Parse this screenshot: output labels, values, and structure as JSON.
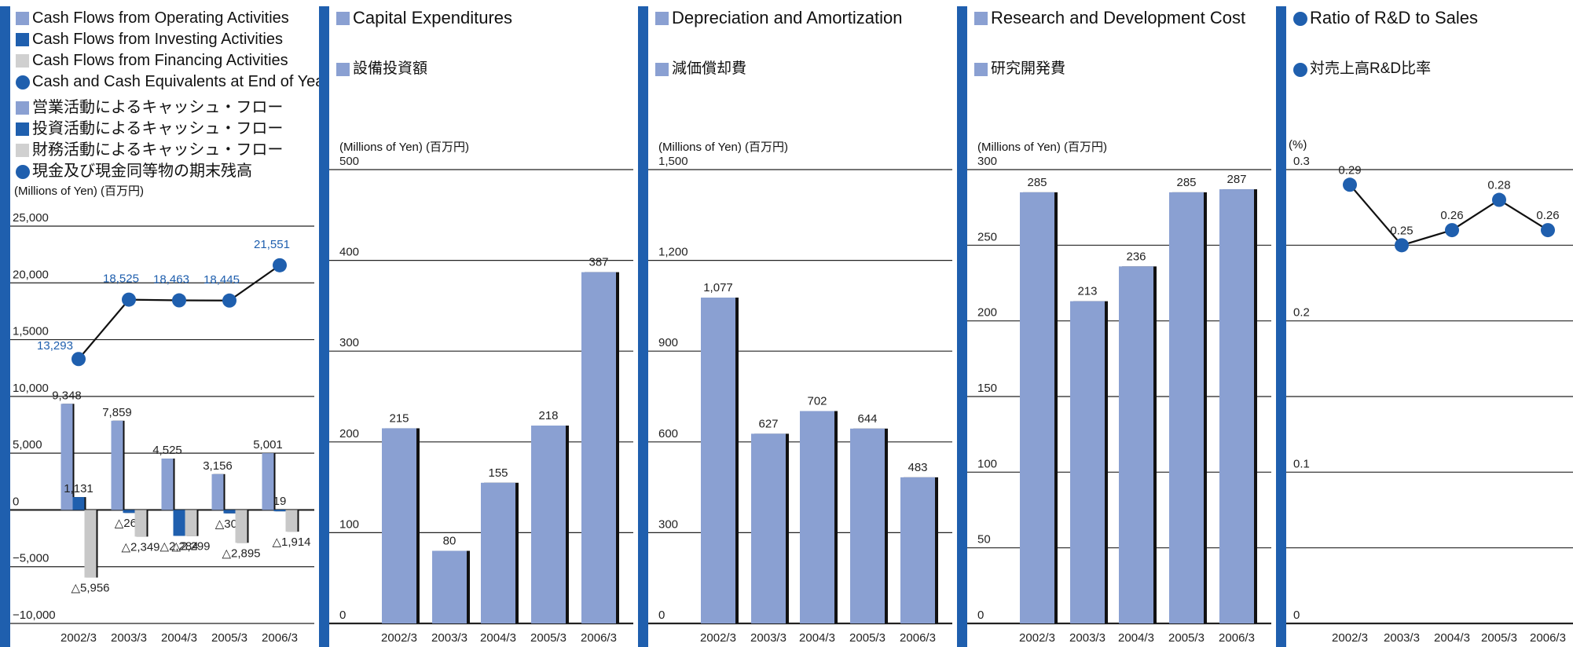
{
  "colors": {
    "accent": "#1f5fae",
    "operating": "#8aa0d2",
    "investing": "#1f5fae",
    "financing": "#c8c8c8",
    "cash": "#1f5fae",
    "bar": "#8aa0d2",
    "bar_shadow": "#111111",
    "point": "#1f5fae"
  },
  "cashflow": {
    "legend_en": [
      {
        "label": "Cash Flows from Operating Activities",
        "color": "#8aa0d2",
        "shape": "square"
      },
      {
        "label": "Cash Flows from Investing Activities",
        "color": "#1f5fae",
        "shape": "square"
      },
      {
        "label": "Cash Flows from Financing Activities",
        "color": "#d0d0d0",
        "shape": "square"
      },
      {
        "label": "Cash and Cash Equivalents at End of Year",
        "color": "#1f5fae",
        "shape": "circle"
      }
    ],
    "legend_ja": [
      {
        "label": "営業活動によるキャッシュ・フロー",
        "color": "#8aa0d2",
        "shape": "square"
      },
      {
        "label": "投資活動によるキャッシュ・フロー",
        "color": "#1f5fae",
        "shape": "square"
      },
      {
        "label": "財務活動によるキャッシュ・フロー",
        "color": "#d0d0d0",
        "shape": "square"
      },
      {
        "label": "現金及び現金同等物の期末残高",
        "color": "#1f5fae",
        "shape": "circle"
      }
    ],
    "unit": "(Millions of Yen) (百万円)"
  },
  "capex": {
    "title_en": "Capital Expenditures",
    "title_ja": "設備投資額",
    "unit": "(Millions of Yen) (百万円)"
  },
  "dep": {
    "title_en": "Depreciation and Amortization",
    "title_ja": "減価償却費",
    "unit": "(Millions of Yen) (百万円)"
  },
  "rnd": {
    "title_en": "Research and Development Cost",
    "title_ja": "研究開発費",
    "unit": "(Millions of Yen) (百万円)"
  },
  "ratio": {
    "title_en": "Ratio of R&D to Sales",
    "title_ja": "対売上高R&D比率",
    "unit": "(%)"
  },
  "chart_data": [
    {
      "type": "bar",
      "categories": [
        "2002/3",
        "2003/3",
        "2004/3",
        "2005/3",
        "2006/3"
      ],
      "series": [
        {
          "name": "Cash Flows from Operating Activities",
          "values": [
            9348,
            7859,
            4525,
            3156,
            5001
          ],
          "labels": [
            "9,348",
            "7,859",
            "4,525",
            "3,156",
            "5,001"
          ]
        },
        {
          "name": "Cash Flows from Investing Activities",
          "values": [
            1131,
            -263,
            -2284,
            -300,
            19
          ],
          "labels": [
            "1,131",
            "△263",
            "△2,284",
            "△300",
            "19"
          ]
        },
        {
          "name": "Cash Flows from Financing Activities",
          "values": [
            -5956,
            -2349,
            -2299,
            -2895,
            -1914
          ],
          "labels": [
            "△5,956",
            "△2,349",
            "△2,299",
            "△2,895",
            "△1,914"
          ]
        }
      ],
      "line": {
        "name": "Cash and Cash Equivalents at End of Year",
        "values": [
          13293,
          18525,
          18463,
          18445,
          21551
        ],
        "labels": [
          "13,293",
          "18,525",
          "18,463",
          "18,445",
          "21,551"
        ]
      },
      "yticks": [
        25000,
        20000,
        15000,
        10000,
        5000,
        0,
        -5000,
        -10000
      ],
      "ytick_labels": [
        "25,000",
        "20,000",
        "1,5000",
        "10,000",
        "5,000",
        "0",
        "−5,000",
        "−10,000"
      ],
      "ylim": [
        -10000,
        25000
      ],
      "ylabel": "(Millions of Yen) (百万円)",
      "grid": true
    },
    {
      "type": "bar",
      "title": "Capital Expenditures",
      "categories": [
        "2002/3",
        "2003/3",
        "2004/3",
        "2005/3",
        "2006/3"
      ],
      "values": [
        215,
        80,
        155,
        218,
        387
      ],
      "labels": [
        "215",
        "80",
        "155",
        "218",
        "387"
      ],
      "yticks": [
        0,
        100,
        200,
        300,
        400,
        500
      ],
      "ytick_labels": [
        "0",
        "100",
        "200",
        "300",
        "400",
        "500"
      ],
      "ylim": [
        0,
        500
      ],
      "ylabel": "(Millions of Yen) (百万円)",
      "grid": true
    },
    {
      "type": "bar",
      "title": "Depreciation and Amortization",
      "categories": [
        "2002/3",
        "2003/3",
        "2004/3",
        "2005/3",
        "2006/3"
      ],
      "values": [
        1077,
        627,
        702,
        644,
        483
      ],
      "labels": [
        "1,077",
        "627",
        "702",
        "644",
        "483"
      ],
      "yticks": [
        0,
        300,
        600,
        900,
        1200,
        1500
      ],
      "ytick_labels": [
        "0",
        "300",
        "600",
        "900",
        "1,200",
        "1,500"
      ],
      "ylim": [
        0,
        1500
      ],
      "ylabel": "(Millions of Yen) (百万円)",
      "grid": true
    },
    {
      "type": "bar",
      "title": "Research and Development Cost",
      "categories": [
        "2002/3",
        "2003/3",
        "2004/3",
        "2005/3",
        "2006/3"
      ],
      "values": [
        285,
        213,
        236,
        285,
        287
      ],
      "labels": [
        "285",
        "213",
        "236",
        "285",
        "287"
      ],
      "yticks": [
        0,
        50,
        100,
        150,
        200,
        250,
        300
      ],
      "ytick_labels": [
        "0",
        "50",
        "100",
        "150",
        "200",
        "250",
        "300"
      ],
      "ylim": [
        0,
        300
      ],
      "ylabel": "(Millions of Yen) (百万円)",
      "grid": true
    },
    {
      "type": "line",
      "title": "Ratio of R&D to Sales",
      "categories": [
        "2002/3",
        "2003/3",
        "2004/3",
        "2005/3",
        "2006/3"
      ],
      "values": [
        0.29,
        0.25,
        0.26,
        0.28,
        0.26
      ],
      "labels": [
        "0.29",
        "0.25",
        "0.26",
        "0.28",
        "0.26"
      ],
      "yticks": [
        0,
        0.1,
        0.2,
        0.3
      ],
      "ytick_labels": [
        "0",
        "0.1",
        "0.2",
        "0.3"
      ],
      "ylim": [
        0,
        0.3
      ],
      "ylabel": "(%)",
      "grid": true
    }
  ]
}
